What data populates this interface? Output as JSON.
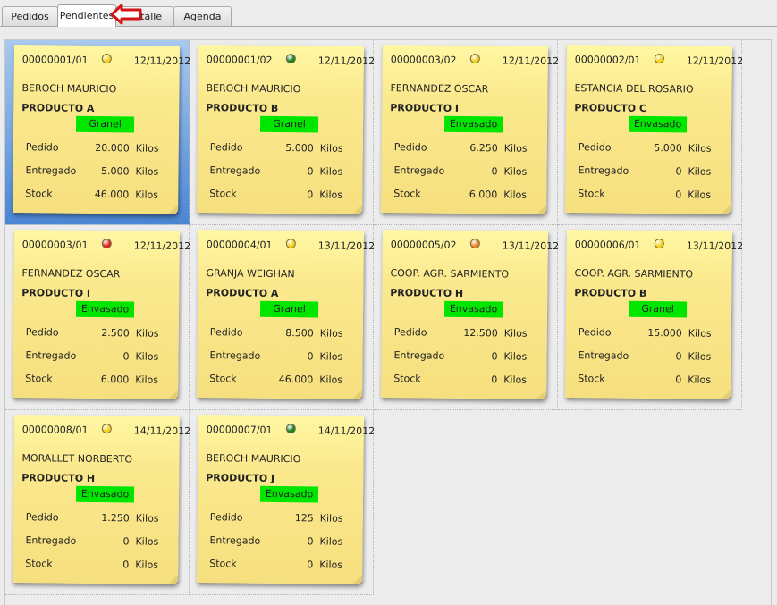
{
  "tabs": [
    {
      "label": "Pedidos"
    },
    {
      "label": "Pendientes",
      "active": true
    },
    {
      "label": "Detalle"
    },
    {
      "label": "Agenda"
    }
  ],
  "labels": {
    "pedido": "Pedido",
    "entregado": "Entregado",
    "stock": "Stock",
    "unit": "Kilos"
  },
  "status_colors": {
    "yellow": "#f6cf16",
    "green": "#1b7e22",
    "red": "#e02218",
    "orange": "#f07f1c"
  },
  "badge_color": "#00e600",
  "orders": [
    {
      "code": "00000001/01",
      "date": "12/11/2012",
      "status": "yellow",
      "client": "BEROCH MAURICIO",
      "product": "PRODUCTO A",
      "packaging": "Granel",
      "pedido": "20.000",
      "entregado": "5.000",
      "stock": "46.000",
      "selected": true
    },
    {
      "code": "00000001/02",
      "date": "12/11/2012",
      "status": "green",
      "client": "BEROCH MAURICIO",
      "product": "PRODUCTO B",
      "packaging": "Granel",
      "pedido": "5.000",
      "entregado": "0",
      "stock": "0"
    },
    {
      "code": "00000003/02",
      "date": "12/11/2012",
      "status": "yellow",
      "client": "FERNANDEZ OSCAR",
      "product": "PRODUCTO I",
      "packaging": "Envasado",
      "pedido": "6.250",
      "entregado": "0",
      "stock": "6.000"
    },
    {
      "code": "00000002/01",
      "date": "12/11/2012",
      "status": "yellow",
      "client": "ESTANCIA DEL ROSARIO",
      "product": "PRODUCTO C",
      "packaging": "Envasado",
      "pedido": "5.000",
      "entregado": "0",
      "stock": "0"
    },
    {
      "code": "00000003/01",
      "date": "12/11/2012",
      "status": "red",
      "client": "FERNANDEZ OSCAR",
      "product": "PRODUCTO I",
      "packaging": "Envasado",
      "pedido": "2.500",
      "entregado": "0",
      "stock": "6.000"
    },
    {
      "code": "00000004/01",
      "date": "13/11/2012",
      "status": "yellow",
      "client": "GRANJA WEIGHAN",
      "product": "PRODUCTO A",
      "packaging": "Granel",
      "pedido": "8.500",
      "entregado": "0",
      "stock": "46.000"
    },
    {
      "code": "00000005/02",
      "date": "13/11/2012",
      "status": "orange",
      "client": "COOP. AGR. SARMIENTO",
      "product": "PRODUCTO H",
      "packaging": "Envasado",
      "pedido": "12.500",
      "entregado": "0",
      "stock": "0"
    },
    {
      "code": "00000006/01",
      "date": "13/11/2012",
      "status": "yellow",
      "client": "COOP. AGR. SARMIENTO",
      "product": "PRODUCTO B",
      "packaging": "Granel",
      "pedido": "15.000",
      "entregado": "0",
      "stock": "0"
    },
    {
      "code": "00000008/01",
      "date": "14/11/2012",
      "status": "yellow",
      "client": "MORALLET NORBERTO",
      "product": "PRODUCTO H",
      "packaging": "Envasado",
      "pedido": "1.250",
      "entregado": "0",
      "stock": "0"
    },
    {
      "code": "00000007/01",
      "date": "14/11/2012",
      "status": "green",
      "client": "BEROCH MAURICIO",
      "product": "PRODUCTO J",
      "packaging": "Envasado",
      "pedido": "125",
      "entregado": "0",
      "stock": "0"
    }
  ]
}
